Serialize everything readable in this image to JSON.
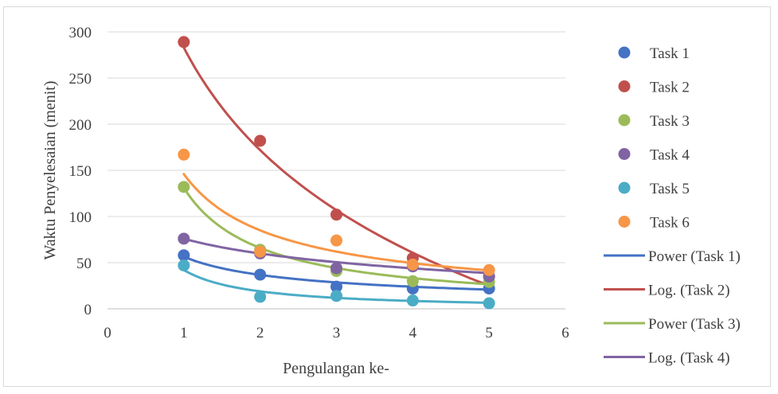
{
  "chart_data": {
    "type": "scatter",
    "title": "",
    "xlabel": "Pengulangan ke-",
    "ylabel": "Waktu Penyelesaian (menit)",
    "xlim": [
      0,
      6
    ],
    "ylim": [
      0,
      300
    ],
    "x_ticks": [
      0,
      1,
      2,
      3,
      4,
      5,
      6
    ],
    "y_ticks": [
      0,
      50,
      100,
      150,
      200,
      250,
      300
    ],
    "grid": "horizontal",
    "legend_position": "right",
    "x": [
      1,
      2,
      3,
      4,
      5
    ],
    "series": [
      {
        "name": "Task 1",
        "color": "#4472c4",
        "values": [
          58,
          37,
          24,
          22,
          22
        ]
      },
      {
        "name": "Task 2",
        "color": "#c0504d",
        "values": [
          289,
          182,
          102,
          55,
          35
        ]
      },
      {
        "name": "Task 3",
        "color": "#9bbb59",
        "values": [
          132,
          64,
          41,
          30,
          29
        ]
      },
      {
        "name": "Task 4",
        "color": "#8064a2",
        "values": [
          76,
          60,
          44,
          46,
          35
        ]
      },
      {
        "name": "Task 5",
        "color": "#4bacc6",
        "values": [
          47,
          13,
          14,
          9,
          6
        ]
      },
      {
        "name": "Task 6",
        "color": "#f79646",
        "values": [
          167,
          62,
          74,
          48,
          42
        ]
      }
    ],
    "trendlines": [
      {
        "name": "Power (Task 1)",
        "color": "#4472c4",
        "kind": "power",
        "a": 56.5,
        "b": -0.62,
        "legend": true
      },
      {
        "name": "Log. (Task 2)",
        "color": "#c0504d",
        "kind": "log",
        "a": 283,
        "b": -160.3,
        "legend": true
      },
      {
        "name": "Power (Task 3)",
        "color": "#9bbb59",
        "kind": "power",
        "a": 131,
        "b": -0.99,
        "legend": true
      },
      {
        "name": "Log. (Task 4)",
        "color": "#8064a2",
        "kind": "log",
        "a": 76,
        "b": -23.2,
        "legend": true
      },
      {
        "name": "",
        "color": "#4bacc6",
        "kind": "power",
        "a": 42,
        "b": -1.15,
        "legend": false
      },
      {
        "name": "",
        "color": "#f79646",
        "kind": "power",
        "a": 146,
        "b": -0.78,
        "legend": false
      }
    ]
  }
}
